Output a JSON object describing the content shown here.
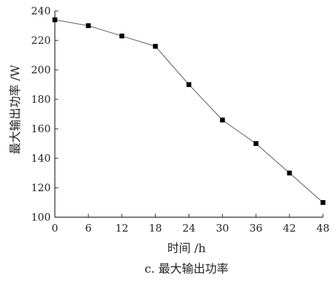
{
  "chart_data": {
    "type": "line",
    "title": "",
    "caption": "c. 最大输出功率",
    "xlabel": "时间 /h",
    "ylabel": "最大输出功率 /W",
    "xlim": [
      0,
      48
    ],
    "ylim": [
      100,
      240
    ],
    "xticks": [
      0,
      6,
      12,
      18,
      24,
      30,
      36,
      42,
      48
    ],
    "yticks": [
      100,
      120,
      140,
      160,
      180,
      200,
      220,
      240
    ],
    "grid": false,
    "legend": "none",
    "marker": "square",
    "line_color": "#555555",
    "marker_color": "#000000",
    "series": [
      {
        "x": [
          0,
          6,
          12,
          18,
          24,
          30,
          36,
          42,
          48
        ],
        "values": [
          234,
          230,
          223,
          216,
          190,
          166,
          150,
          130,
          110
        ]
      }
    ]
  }
}
